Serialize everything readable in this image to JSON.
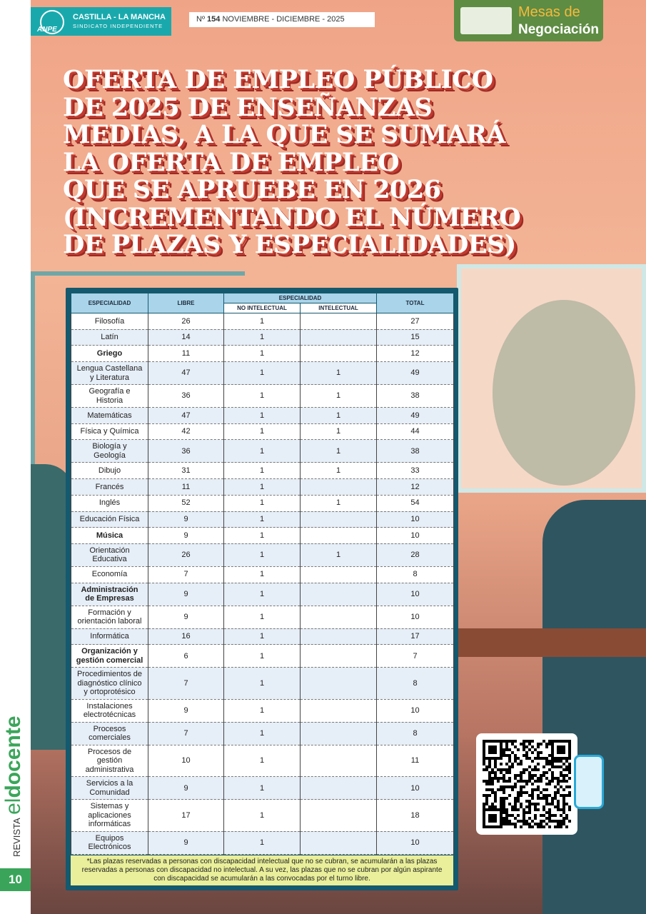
{
  "header": {
    "logo": "ANPE",
    "region": "CASTILLA - LA MANCHA",
    "subtitle": "SINDICATO INDEPENDIENTE",
    "issue_prefix": "Nº",
    "issue_number": "154",
    "issue_date": "NOVIEMBRE - DICIEMBRE - 2025",
    "section_line1": "Mesas de",
    "section_line2": "Negociación"
  },
  "title": [
    "OFERTA DE EMPLEO PÚBLICO",
    "DE 2025 DE ENSEÑANZAS",
    "MEDIAS, A LA QUE SE SUMARÁ",
    "LA OFERTA DE EMPLEO",
    "QUE SE APRUEBE EN 2026",
    "(INCREMENTANDO EL NÚMERO",
    "DE PLAZAS Y ESPECIALIDADES)"
  ],
  "table": {
    "headers": {
      "especialidad": "ESPECIALIDAD",
      "libre": "LIBRE",
      "group": "ESPECIALIDAD",
      "no_intelectual": "NO INTELECTUAL",
      "intelectual": "INTELECTUAL",
      "total": "TOTAL"
    },
    "rows": [
      {
        "name": "Filosofía",
        "libre": 26,
        "no_intelectual": 1,
        "intelectual": null,
        "total": 27
      },
      {
        "name": "Latín",
        "libre": 14,
        "no_intelectual": 1,
        "intelectual": null,
        "total": 15
      },
      {
        "name": "Griego",
        "libre": 11,
        "no_intelectual": 1,
        "intelectual": null,
        "total": 12,
        "bold": true
      },
      {
        "name": "Lengua Castellana y Literatura",
        "libre": 47,
        "no_intelectual": 1,
        "intelectual": 1,
        "total": 49
      },
      {
        "name": "Geografía e Historia",
        "libre": 36,
        "no_intelectual": 1,
        "intelectual": 1,
        "total": 38
      },
      {
        "name": "Matemáticas",
        "libre": 47,
        "no_intelectual": 1,
        "intelectual": 1,
        "total": 49
      },
      {
        "name": "Física y Química",
        "libre": 42,
        "no_intelectual": 1,
        "intelectual": 1,
        "total": 44
      },
      {
        "name": "Biología y Geología",
        "libre": 36,
        "no_intelectual": 1,
        "intelectual": 1,
        "total": 38
      },
      {
        "name": "Dibujo",
        "libre": 31,
        "no_intelectual": 1,
        "intelectual": 1,
        "total": 33
      },
      {
        "name": "Francés",
        "libre": 11,
        "no_intelectual": 1,
        "intelectual": null,
        "total": 12
      },
      {
        "name": "Inglés",
        "libre": 52,
        "no_intelectual": 1,
        "intelectual": 1,
        "total": 54
      },
      {
        "name": "Educación Física",
        "libre": 9,
        "no_intelectual": 1,
        "intelectual": null,
        "total": 10
      },
      {
        "name": "Música",
        "libre": 9,
        "no_intelectual": 1,
        "intelectual": null,
        "total": 10,
        "bold": true
      },
      {
        "name": "Orientación Educativa",
        "libre": 26,
        "no_intelectual": 1,
        "intelectual": 1,
        "total": 28
      },
      {
        "name": "Economía",
        "libre": 7,
        "no_intelectual": 1,
        "intelectual": null,
        "total": 8
      },
      {
        "name": "Administración de Empresas",
        "libre": 9,
        "no_intelectual": 1,
        "intelectual": null,
        "total": 10,
        "bold": true
      },
      {
        "name": "Formación y orientación laboral",
        "libre": 9,
        "no_intelectual": 1,
        "intelectual": null,
        "total": 10
      },
      {
        "name": "Informática",
        "libre": 16,
        "no_intelectual": 1,
        "intelectual": null,
        "total": 17
      },
      {
        "name": "Organización y gestión comercial",
        "libre": 6,
        "no_intelectual": 1,
        "intelectual": null,
        "total": 7,
        "bold": true
      },
      {
        "name": "Procedimientos de diagnóstico clínico y ortoprotésico",
        "libre": 7,
        "no_intelectual": 1,
        "intelectual": null,
        "total": 8
      },
      {
        "name": "Instalaciones electrotécnicas",
        "libre": 9,
        "no_intelectual": 1,
        "intelectual": null,
        "total": 10
      },
      {
        "name": "Procesos comerciales",
        "libre": 7,
        "no_intelectual": 1,
        "intelectual": null,
        "total": 8
      },
      {
        "name": "Procesos de gestión administrativa",
        "libre": 10,
        "no_intelectual": 1,
        "intelectual": null,
        "total": 11
      },
      {
        "name": "Servicios a la Comunidad",
        "libre": 9,
        "no_intelectual": 1,
        "intelectual": null,
        "total": 10
      },
      {
        "name": "Sistemas y aplicaciones informáticas",
        "libre": 17,
        "no_intelectual": 1,
        "intelectual": null,
        "total": 18
      },
      {
        "name": "Equipos Electrónicos",
        "libre": 9,
        "no_intelectual": 1,
        "intelectual": null,
        "total": 10
      }
    ],
    "footnote": "*Las plazas reservadas a personas con discapacidad intelectual que no se cubran, se acumularán a las plazas reservadas a personas con discapacidad no intelectual. A su vez, las plazas que no se cubran por algún aspirante con discapacidad se acumularán a las convocadas por el turno libre."
  },
  "sidebar": {
    "revista": "REVISTA",
    "el": "el",
    "docente": "docente",
    "page": "10"
  }
}
